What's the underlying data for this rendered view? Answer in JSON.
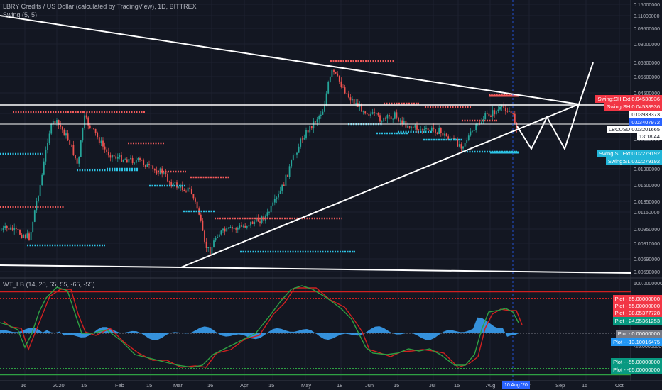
{
  "header": {
    "symbol_title": "LBRY Credits / US Dollar (calculated by TradingView), 1D, BITTREX",
    "indicator_swing": "Swing (5, 5)",
    "indicator_wt": "WT_LB (14, 20, 65, 55, -65, -55)"
  },
  "price_axis": {
    "ticks": [
      "0.15000000",
      "0.11000000",
      "0.09500000",
      "0.08000000",
      "0.06500000",
      "0.05500000",
      "0.04500000",
      "0.03500000",
      "0.02500000",
      "0.01900000",
      "0.01600000",
      "0.01350000",
      "0.01150000",
      "0.00950000",
      "0.00810000",
      "0.00690000",
      "0.00590000"
    ]
  },
  "price_tags": [
    {
      "label": "Swing:SH Ext",
      "value": "0.04538936",
      "color": "#f23645"
    },
    {
      "label": "Swing:SH",
      "value": "0.04538936",
      "color": "#f23645"
    },
    {
      "label": "",
      "value": "0.03933373",
      "color": "#ffffff"
    },
    {
      "label": "",
      "value": "0.03407972",
      "color": "#2962ff"
    },
    {
      "label": "LBCUSD",
      "value": "0.03201665",
      "color": "#ffffff"
    },
    {
      "label": "",
      "value": "13:18:44",
      "color": "#ffffff"
    },
    {
      "label": "Swing:SL Ext",
      "value": "0.02279192",
      "color": "#22b5d8"
    },
    {
      "label": "Swing:SL",
      "value": "0.02279192",
      "color": "#22b5d8"
    }
  ],
  "osc_axis": {
    "ticks": [
      "100.00000000",
      "-25.00000000",
      "-100.00000000"
    ]
  },
  "osc_tags": [
    {
      "label": "Plot",
      "value": "65.00000000",
      "color": "#f23645"
    },
    {
      "label": "Plot",
      "value": "55.00000000",
      "color": "#f23645"
    },
    {
      "label": "Plot",
      "value": "38.05377728",
      "color": "#f23645"
    },
    {
      "label": "Plot",
      "value": "24.95361253",
      "color": "#089981"
    },
    {
      "label": "Plot",
      "value": "0.00000000",
      "color": "#787b86"
    },
    {
      "label": "Plot",
      "value": "-13.10016475",
      "color": "#2196f3"
    },
    {
      "label": "Plot",
      "value": "-55.00000000",
      "color": "#089981"
    },
    {
      "label": "Plot",
      "value": "-65.00000000",
      "color": "#089981"
    }
  ],
  "time_axis": {
    "labels": [
      "16",
      "2020",
      "15",
      "Feb",
      "15",
      "Mar",
      "16",
      "Apr",
      "15",
      "May",
      "18",
      "Jun",
      "15",
      "Jul",
      "15",
      "Aug",
      "17",
      "Sep",
      "15",
      "Oct"
    ],
    "cursor_label": "10 Aug '20"
  },
  "colors": {
    "bg": "#131722",
    "up": "#26a69a",
    "down": "#ef5350",
    "trend": "#ffffff",
    "swing_high": "#f05a5a",
    "swing_low": "#2ec4e6",
    "wt1": "#2ea043",
    "wt2": "#d02020",
    "hist": "#3a9ff0"
  }
}
